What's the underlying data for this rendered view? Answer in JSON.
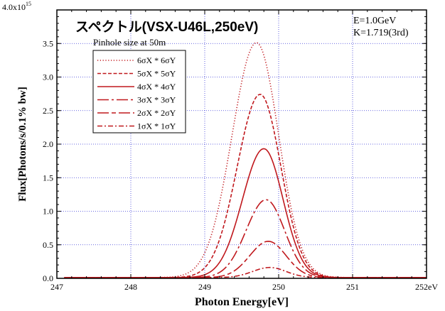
{
  "chart_data": {
    "type": "line",
    "title": "スペクトル(VSX-U46L,250eV)",
    "info_lines": [
      "E=1.0GeV",
      "K=1.719(3rd)"
    ],
    "legend_title": "Pinhole size at 50m",
    "legend_position": "upper-left",
    "xlabel": "Photon Energy[eV]",
    "ylabel": "Flux[Photons/s/0.1% bw]",
    "xlim": [
      247,
      252
    ],
    "ylim": [
      0,
      4.0
    ],
    "y_multiplier_label": "4.0x10",
    "y_multiplier_exp": "15",
    "x_tick_labels": [
      "247",
      "248",
      "249",
      "250",
      "251",
      "252eV"
    ],
    "y_tick_labels": [
      "0.0",
      "0.5",
      "1.0",
      "1.5",
      "2.0",
      "2.5",
      "3.0",
      "3.5"
    ],
    "grid": true,
    "color": "#c0181d",
    "series": [
      {
        "label": "6σX * 6σY",
        "line_style": "dotted",
        "peak_x": 249.7,
        "peak_y": 3.5,
        "width_left": 0.33,
        "width_right": 0.3
      },
      {
        "label": "5σX * 5σY",
        "line_style": "short-dash",
        "peak_x": 249.75,
        "peak_y": 2.73,
        "width_left": 0.31,
        "width_right": 0.28
      },
      {
        "label": "4σX * 4σY",
        "line_style": "solid",
        "peak_x": 249.8,
        "peak_y": 1.92,
        "width_left": 0.29,
        "width_right": 0.26
      },
      {
        "label": "3σX * 3σY",
        "line_style": "long-dash-dot",
        "peak_x": 249.83,
        "peak_y": 1.16,
        "width_left": 0.27,
        "width_right": 0.25
      },
      {
        "label": "2σX * 2σY",
        "line_style": "long-dash-short",
        "peak_x": 249.86,
        "peak_y": 0.54,
        "width_left": 0.25,
        "width_right": 0.24
      },
      {
        "label": "1σX * 1σY",
        "line_style": "dash-dot",
        "peak_x": 249.88,
        "peak_y": 0.15,
        "width_left": 0.23,
        "width_right": 0.22
      }
    ]
  }
}
